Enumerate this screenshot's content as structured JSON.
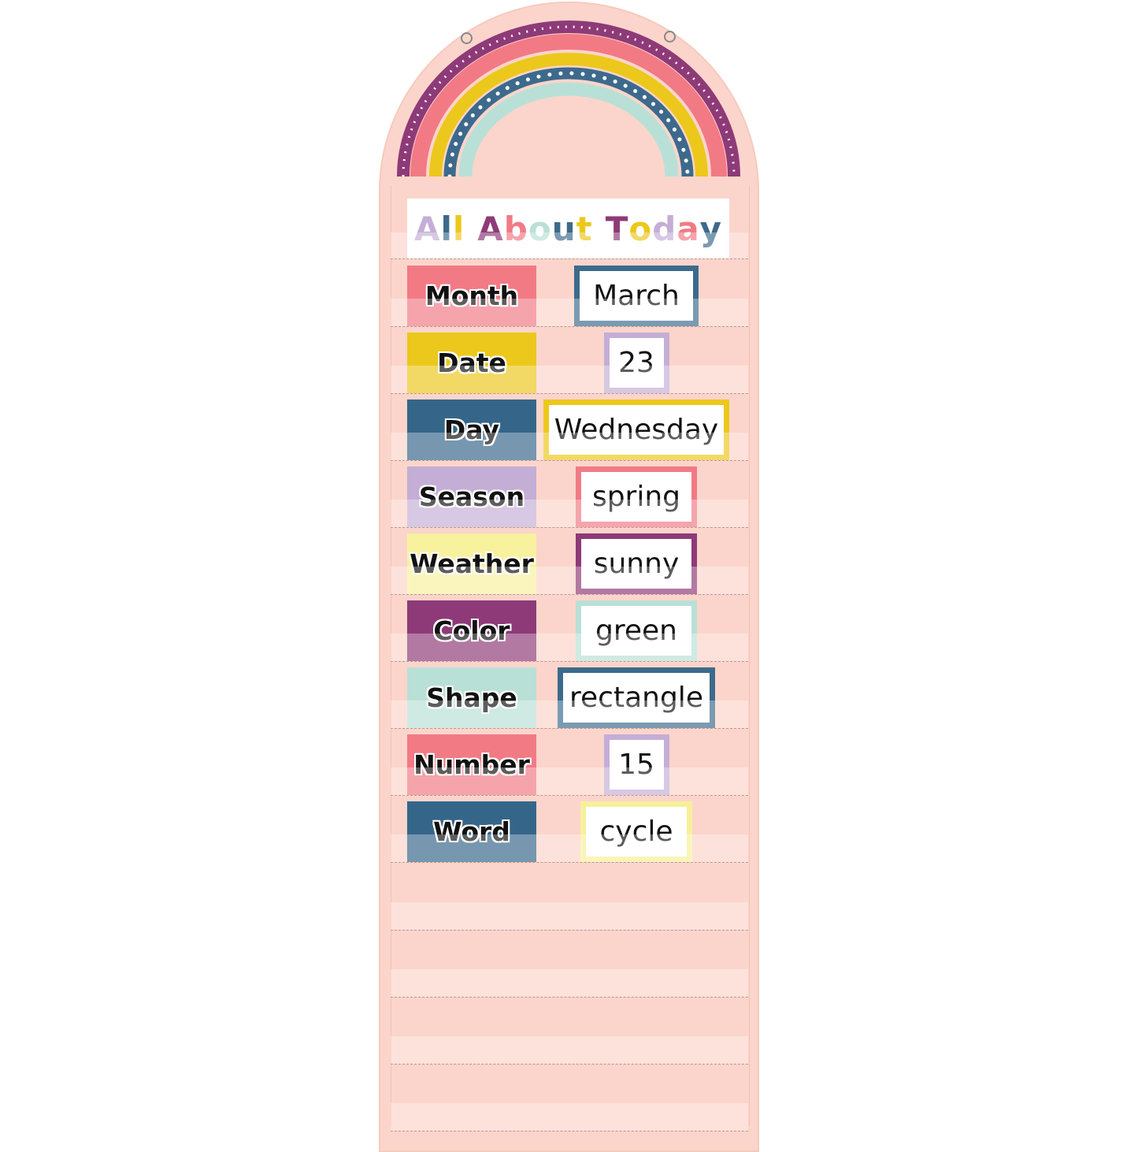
{
  "title": {
    "text": "All About Today",
    "letters": [
      {
        "ch": "A",
        "color": "#c5aed6"
      },
      {
        "ch": "l",
        "color": "#3d6a8c"
      },
      {
        "ch": "l",
        "color": "#ecc81c"
      },
      {
        "ch": " ",
        "color": "#000"
      },
      {
        "ch": "A",
        "color": "#8e3a78"
      },
      {
        "ch": "b",
        "color": "#f27a85"
      },
      {
        "ch": "o",
        "color": "#b9e0d6"
      },
      {
        "ch": "u",
        "color": "#3d6a8c"
      },
      {
        "ch": "t",
        "color": "#ecc81c"
      },
      {
        "ch": " ",
        "color": "#000"
      },
      {
        "ch": "T",
        "color": "#8e3a78"
      },
      {
        "ch": "o",
        "color": "#ecc81c"
      },
      {
        "ch": "d",
        "color": "#c5aed6"
      },
      {
        "ch": "a",
        "color": "#f27a85"
      },
      {
        "ch": "y",
        "color": "#3d6a8c"
      }
    ]
  },
  "colors": {
    "chart_background": "#fbd5cb",
    "purple": "#8e3a78",
    "pink": "#f27a85",
    "yellow": "#ecc81c",
    "blue": "#3d6a8c",
    "mint": "#b9e0d6"
  },
  "rows": [
    {
      "label": "Month",
      "label_color": "#f27a85",
      "value": "March",
      "border_color": "#3d6a8c"
    },
    {
      "label": "Date",
      "label_color": "#ecc81c",
      "value": "23",
      "border_color": "#c5aed6"
    },
    {
      "label": "Day",
      "label_color": "#35668a",
      "value": "Wednesday",
      "border_color": "#ecc81c"
    },
    {
      "label": "Season",
      "label_color": "#c5aed6",
      "value": "spring",
      "border_color": "#f27a85"
    },
    {
      "label": "Weather",
      "label_color": "#f8f19e",
      "value": "sunny",
      "border_color": "#8e3a78"
    },
    {
      "label": "Color",
      "label_color": "#8e3a78",
      "value": "green",
      "border_color": "#b9e0d6"
    },
    {
      "label": "Shape",
      "label_color": "#b9e0d6",
      "value": "rectangle",
      "border_color": "#3d6a8c"
    },
    {
      "label": "Number",
      "label_color": "#f27a85",
      "value": "15",
      "border_color": "#c5aed6"
    },
    {
      "label": "Word",
      "label_color": "#35668a",
      "value": "cycle",
      "border_color": "#f7f09a"
    }
  ]
}
